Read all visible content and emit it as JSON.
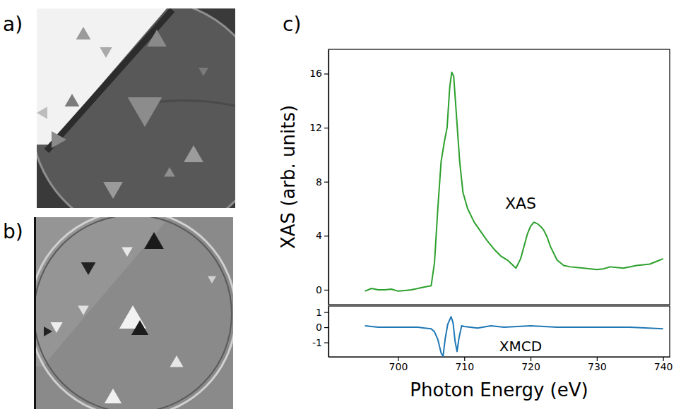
{
  "panels": [
    "a)",
    "b)",
    "c)"
  ],
  "chart_data": [
    {
      "type": "line",
      "ylabel": "XAS (arb. units)",
      "xlim": [
        689.5,
        741
      ],
      "ylim": [
        -1.1,
        17.8
      ],
      "yticks": [
        0,
        4,
        8,
        12,
        16
      ],
      "tick_labels": "y",
      "x": [
        695,
        696,
        697,
        698,
        699,
        700,
        701,
        702,
        703,
        704,
        705,
        705.5,
        706,
        706.5,
        707,
        707.4,
        707.8,
        708.1,
        708.4,
        708.8,
        709.3,
        709.8,
        710.5,
        711.5,
        712.5,
        713.5,
        714.5,
        715.5,
        716.5,
        717.8,
        718.5,
        719,
        719.5,
        720,
        720.5,
        721,
        721.5,
        722,
        722.5,
        723,
        724,
        725,
        726,
        728,
        730,
        731,
        732,
        734,
        736,
        738,
        739,
        740
      ],
      "series": [
        {
          "color": "#2ca02c",
          "line_style": "solid",
          "values": [
            -0.1,
            0.1,
            0,
            0,
            0.05,
            -0.1,
            -0.05,
            0,
            0.1,
            0.2,
            0.3,
            2,
            6,
            9.5,
            11,
            12,
            15,
            16.1,
            15.8,
            13,
            9.5,
            7.2,
            6,
            5,
            4.3,
            3.6,
            3,
            2.5,
            2.2,
            1.6,
            2.3,
            3.2,
            4.1,
            4.7,
            5.0,
            4.9,
            4.7,
            4.4,
            3.9,
            3.2,
            2.2,
            1.8,
            1.7,
            1.6,
            1.5,
            1.55,
            1.7,
            1.6,
            1.8,
            1.9,
            2.1,
            2.3
          ]
        }
      ],
      "annotations": [
        {
          "text": "XAS",
          "x": 718.5,
          "y": 6.3
        }
      ]
    },
    {
      "type": "line",
      "xlabel": "Photon Energy (eV)",
      "xlim": [
        689.5,
        741
      ],
      "ylim": [
        -1.95,
        1.4
      ],
      "xticks": [
        700,
        710,
        720,
        730,
        740
      ],
      "yticks": [
        -1,
        0,
        1
      ],
      "x": [
        695,
        697,
        700,
        703,
        704,
        705,
        705.5,
        706,
        706.5,
        706.8,
        707.1,
        707.5,
        708,
        708.3,
        708.6,
        708.9,
        709.2,
        709.6,
        710,
        712,
        714,
        716,
        718,
        720,
        722,
        724,
        726,
        730,
        735,
        740
      ],
      "series": [
        {
          "color": "#1f77b4",
          "line_style": "solid",
          "values": [
            0.1,
            0,
            0,
            0,
            -0.05,
            -0.1,
            -0.3,
            -0.8,
            -1.7,
            -1.9,
            -0.8,
            0.2,
            0.7,
            0.3,
            -0.9,
            -1.6,
            -0.7,
            0.1,
            0.05,
            -0.05,
            0.1,
            0,
            0.05,
            0.1,
            0.05,
            0,
            0,
            0,
            0,
            -0.1
          ]
        }
      ],
      "annotations": [
        {
          "text": "XMCD",
          "x": 718.5,
          "y": -1.3
        }
      ]
    }
  ]
}
